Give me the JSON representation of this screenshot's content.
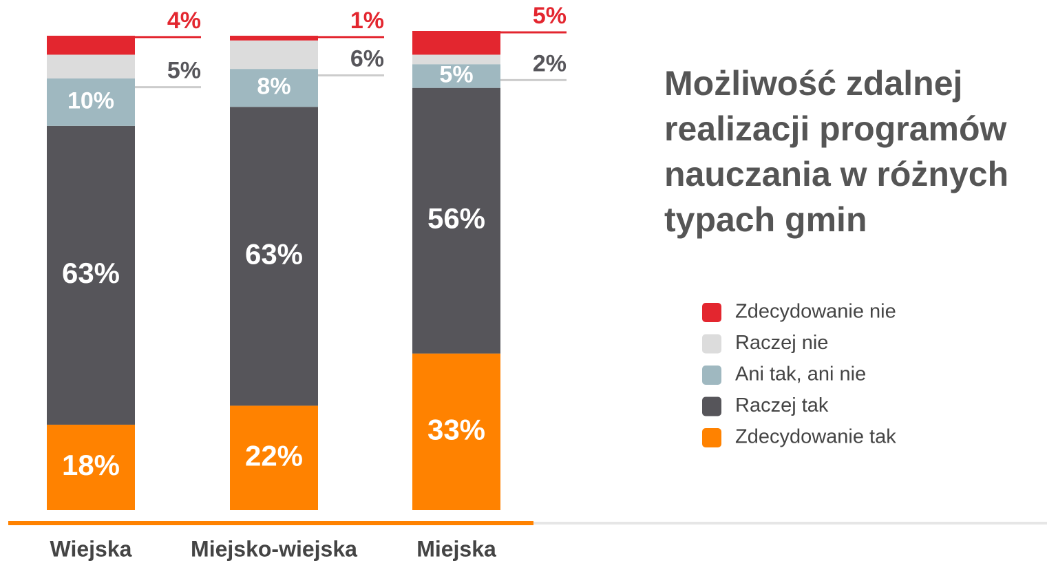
{
  "chart_data": {
    "type": "stacked_bar",
    "title": "Możliwość zdalnej realizacji programów nauczania w różnych typach gmin",
    "categories": [
      "Wiejska",
      "Miejsko-wiejska",
      "Miejska"
    ],
    "series": [
      {
        "name": "Zdecydowanie tak",
        "color": "#ff8200",
        "values": [
          18,
          22,
          33
        ],
        "value_labels": [
          "18%",
          "22%",
          "33%"
        ]
      },
      {
        "name": "Raczej tak",
        "color": "#56555a",
        "values": [
          63,
          63,
          56
        ],
        "value_labels": [
          "63%",
          "63%",
          "56%"
        ]
      },
      {
        "name": "Ani tak, ani nie",
        "color": "#9fb8c0",
        "values": [
          10,
          8,
          5
        ],
        "value_labels": [
          "10%",
          "8%",
          "5%"
        ]
      },
      {
        "name": "Raczej nie",
        "color": "#dcdcdc",
        "values": [
          5,
          6,
          2
        ],
        "value_labels": [
          "5%",
          "6%",
          "2%"
        ]
      },
      {
        "name": "Zdecydowanie nie",
        "color": "#e3262f",
        "values": [
          4,
          1,
          5
        ],
        "value_labels": [
          "4%",
          "1%",
          "5%"
        ]
      }
    ],
    "legend": "right"
  }
}
